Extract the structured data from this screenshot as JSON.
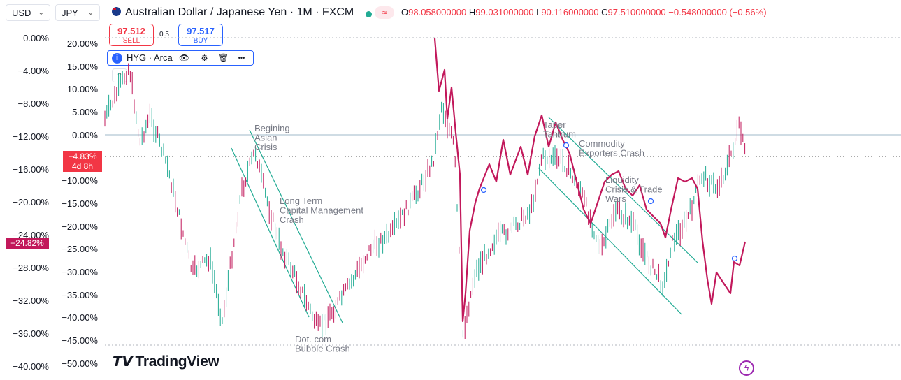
{
  "toolbar": {
    "currency_left": "USD",
    "currency_right": "JPY",
    "symbol_title": "Australian Dollar / Japanese Yen · 1M · FXCM",
    "market_status_alt": "≈"
  },
  "ohlc": {
    "o_label": "O",
    "o_value": "98.058000000",
    "h_label": "H",
    "h_value": "99.031000000",
    "l_label": "L",
    "l_value": "90.116000000",
    "c_label": "C",
    "c_value": "97.510000000",
    "change": "−0.548000000 (−0.56%)"
  },
  "trade": {
    "sell_price": "97.512",
    "sell_label": "SELL",
    "buy_price": "97.517",
    "buy_label": "BUY",
    "spread": "0.5"
  },
  "indicator": {
    "info": "i",
    "name": "HYG · Arca",
    "eye_icon": "👁",
    "settings_icon": "⚙",
    "delete_icon": "🗑",
    "more_icon": "•••"
  },
  "collapse_label": "⌃",
  "left_axis": [
    "0.00%",
    "−4.00%",
    "−8.00%",
    "−12.00%",
    "−16.00%",
    "−20.00%",
    "−24.00%",
    "−28.00%",
    "−32.00%",
    "−36.00%",
    "−40.00%"
  ],
  "right_axis": [
    "20.00%",
    "15.00%",
    "10.00%",
    "5.00%",
    "0.00%",
    "−5.00%",
    "−10.00%",
    "−15.00%",
    "−20.00%",
    "−25.00%",
    "−30.00%",
    "−35.00%",
    "−40.00%",
    "−45.00%",
    "−50.00%"
  ],
  "badges": {
    "countdown_value": "−4.83%",
    "countdown_time": "4d 8h",
    "hyg_value": "−24.82%"
  },
  "annotations": [
    {
      "lines": [
        "Begining",
        "Asian",
        "Crisis"
      ]
    },
    {
      "lines": [
        "Long Term",
        "Capital Management",
        "Crash"
      ]
    },
    {
      "lines": [
        "Dot. com",
        "Bubble Crash"
      ]
    },
    {
      "lines": [
        "Taper",
        "Tantrum"
      ]
    },
    {
      "lines": [
        "Commodity",
        "Exporters Crash"
      ]
    },
    {
      "lines": [
        "Liquidity",
        "Crisis & Trade",
        "Wars"
      ]
    }
  ],
  "logo_text": "TradingView",
  "colors": {
    "candle_up": "#22ab94",
    "candle_down": "#c2185b",
    "hyg_line": "#c2185b",
    "trend": "#22ab94",
    "sell": "#f23645",
    "buy": "#2962ff"
  }
}
